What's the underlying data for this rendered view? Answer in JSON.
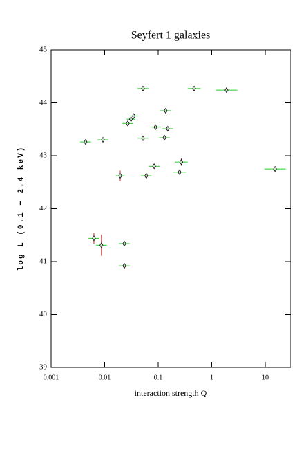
{
  "chart_data": {
    "type": "scatter",
    "title": "Seyfert 1 galaxies",
    "x_label": "interaction strength Q",
    "y_label": "log L (0.1 − 2.4 keV)",
    "log_x": true,
    "xlim": [
      0.001,
      30
    ],
    "xticks": [
      0.001,
      0.01,
      0.1,
      1,
      10
    ],
    "ylim": [
      39,
      45
    ],
    "yticks": [
      39,
      40,
      41,
      42,
      43,
      44,
      45
    ],
    "marker_color": "#000000",
    "x_error_color": "#22cc22",
    "y_error_color": "#dd2222",
    "x": [
      0.0044,
      0.0093,
      0.0063,
      0.0087,
      0.0195,
      0.0233,
      0.0233,
      0.027,
      0.031,
      0.035,
      0.052,
      0.052,
      0.06,
      0.084,
      0.089,
      0.131,
      0.138,
      0.151,
      0.251,
      0.27,
      0.469,
      1.89,
      15.2
    ],
    "y": [
      43.26,
      43.3,
      41.44,
      41.31,
      42.62,
      41.34,
      40.92,
      43.61,
      43.69,
      43.75,
      44.27,
      43.33,
      42.62,
      42.8,
      43.54,
      43.34,
      43.85,
      43.51,
      42.69,
      42.88,
      44.27,
      44.24,
      42.75
    ],
    "x_error_dex": [
      0.1,
      0.1,
      0.1,
      0.1,
      0.08,
      0.1,
      0.1,
      0.1,
      0.08,
      0.08,
      0.1,
      0.1,
      0.1,
      0.1,
      0.1,
      0.1,
      0.1,
      0.1,
      0.12,
      0.12,
      0.12,
      0.2,
      0.2
    ],
    "y_errors": [
      0.02,
      0.02,
      0.1,
      0.2,
      0.1,
      0.02,
      0.03,
      0.03,
      0.03,
      0.03,
      0.02,
      0.02,
      0.03,
      0.04,
      0.02,
      0.02,
      0.03,
      0.03,
      0.03,
      0.07,
      0.02,
      0.02,
      0.02
    ]
  }
}
